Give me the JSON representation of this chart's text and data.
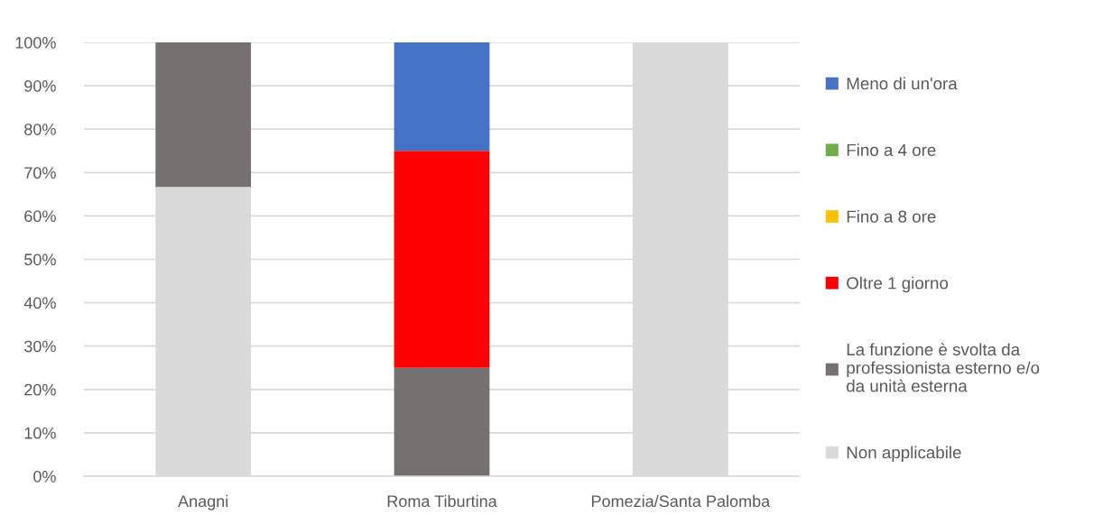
{
  "chart_data": {
    "type": "bar",
    "stacked": true,
    "categories": [
      "Anagni",
      "Roma Tiburtina",
      "Pomezia/Santa Palomba"
    ],
    "series": [
      {
        "name": "Non applicabile",
        "color": "#d9d9d9",
        "values": [
          66.7,
          0,
          100
        ]
      },
      {
        "name": "La funzione è svolta da\nprofessionista esterno e/o\nda unità esterna",
        "color": "#767171",
        "values": [
          33.3,
          25,
          0
        ]
      },
      {
        "name": "Oltre 1 giorno",
        "color": "#ff0000",
        "values": [
          0,
          50,
          0
        ]
      },
      {
        "name": "Fino a 8 ore",
        "color": "#ffc000",
        "values": [
          0,
          0,
          0
        ]
      },
      {
        "name": "Fino a 4 ore",
        "color": "#70ad47",
        "values": [
          0,
          0,
          0
        ]
      },
      {
        "name": "Meno di un'ora",
        "color": "#4472c4",
        "values": [
          0,
          25,
          0
        ]
      }
    ],
    "ylim": [
      0,
      100
    ],
    "yticks": [
      {
        "value": 0,
        "label": "0%"
      },
      {
        "value": 10,
        "label": "10%"
      },
      {
        "value": 20,
        "label": "20%"
      },
      {
        "value": 30,
        "label": "30%"
      },
      {
        "value": 40,
        "label": "40%"
      },
      {
        "value": 50,
        "label": "50%"
      },
      {
        "value": 60,
        "label": "60%"
      },
      {
        "value": 70,
        "label": "70%"
      },
      {
        "value": 80,
        "label": "80%"
      },
      {
        "value": 90,
        "label": "90%"
      },
      {
        "value": 100,
        "label": "100%"
      }
    ],
    "grid": "y",
    "legend": "right"
  }
}
